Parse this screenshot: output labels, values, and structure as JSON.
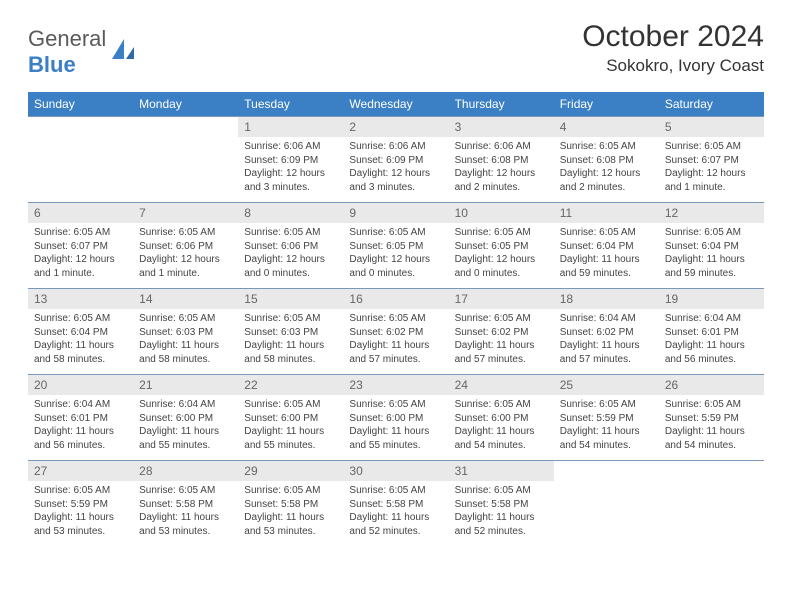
{
  "brand": {
    "word1": "General",
    "word2": "Blue"
  },
  "title": "October 2024",
  "location": "Sokokro, Ivory Coast",
  "colors": {
    "header_bg": "#3b7fc4",
    "header_fg": "#ffffff",
    "daynum_bg": "#e9e9e9",
    "rule": "#7a99b8",
    "logo_blue": "#3b7fc4",
    "logo_gray": "#5a5a5a"
  },
  "weekdays": [
    "Sunday",
    "Monday",
    "Tuesday",
    "Wednesday",
    "Thursday",
    "Friday",
    "Saturday"
  ],
  "weeks": [
    [
      {
        "n": "",
        "sr": "",
        "ss": "",
        "dl": "",
        "empty": true
      },
      {
        "n": "",
        "sr": "",
        "ss": "",
        "dl": "",
        "empty": true
      },
      {
        "n": "1",
        "sr": "Sunrise: 6:06 AM",
        "ss": "Sunset: 6:09 PM",
        "dl": "Daylight: 12 hours and 3 minutes."
      },
      {
        "n": "2",
        "sr": "Sunrise: 6:06 AM",
        "ss": "Sunset: 6:09 PM",
        "dl": "Daylight: 12 hours and 3 minutes."
      },
      {
        "n": "3",
        "sr": "Sunrise: 6:06 AM",
        "ss": "Sunset: 6:08 PM",
        "dl": "Daylight: 12 hours and 2 minutes."
      },
      {
        "n": "4",
        "sr": "Sunrise: 6:05 AM",
        "ss": "Sunset: 6:08 PM",
        "dl": "Daylight: 12 hours and 2 minutes."
      },
      {
        "n": "5",
        "sr": "Sunrise: 6:05 AM",
        "ss": "Sunset: 6:07 PM",
        "dl": "Daylight: 12 hours and 1 minute."
      }
    ],
    [
      {
        "n": "6",
        "sr": "Sunrise: 6:05 AM",
        "ss": "Sunset: 6:07 PM",
        "dl": "Daylight: 12 hours and 1 minute."
      },
      {
        "n": "7",
        "sr": "Sunrise: 6:05 AM",
        "ss": "Sunset: 6:06 PM",
        "dl": "Daylight: 12 hours and 1 minute."
      },
      {
        "n": "8",
        "sr": "Sunrise: 6:05 AM",
        "ss": "Sunset: 6:06 PM",
        "dl": "Daylight: 12 hours and 0 minutes."
      },
      {
        "n": "9",
        "sr": "Sunrise: 6:05 AM",
        "ss": "Sunset: 6:05 PM",
        "dl": "Daylight: 12 hours and 0 minutes."
      },
      {
        "n": "10",
        "sr": "Sunrise: 6:05 AM",
        "ss": "Sunset: 6:05 PM",
        "dl": "Daylight: 12 hours and 0 minutes."
      },
      {
        "n": "11",
        "sr": "Sunrise: 6:05 AM",
        "ss": "Sunset: 6:04 PM",
        "dl": "Daylight: 11 hours and 59 minutes."
      },
      {
        "n": "12",
        "sr": "Sunrise: 6:05 AM",
        "ss": "Sunset: 6:04 PM",
        "dl": "Daylight: 11 hours and 59 minutes."
      }
    ],
    [
      {
        "n": "13",
        "sr": "Sunrise: 6:05 AM",
        "ss": "Sunset: 6:04 PM",
        "dl": "Daylight: 11 hours and 58 minutes."
      },
      {
        "n": "14",
        "sr": "Sunrise: 6:05 AM",
        "ss": "Sunset: 6:03 PM",
        "dl": "Daylight: 11 hours and 58 minutes."
      },
      {
        "n": "15",
        "sr": "Sunrise: 6:05 AM",
        "ss": "Sunset: 6:03 PM",
        "dl": "Daylight: 11 hours and 58 minutes."
      },
      {
        "n": "16",
        "sr": "Sunrise: 6:05 AM",
        "ss": "Sunset: 6:02 PM",
        "dl": "Daylight: 11 hours and 57 minutes."
      },
      {
        "n": "17",
        "sr": "Sunrise: 6:05 AM",
        "ss": "Sunset: 6:02 PM",
        "dl": "Daylight: 11 hours and 57 minutes."
      },
      {
        "n": "18",
        "sr": "Sunrise: 6:04 AM",
        "ss": "Sunset: 6:02 PM",
        "dl": "Daylight: 11 hours and 57 minutes."
      },
      {
        "n": "19",
        "sr": "Sunrise: 6:04 AM",
        "ss": "Sunset: 6:01 PM",
        "dl": "Daylight: 11 hours and 56 minutes."
      }
    ],
    [
      {
        "n": "20",
        "sr": "Sunrise: 6:04 AM",
        "ss": "Sunset: 6:01 PM",
        "dl": "Daylight: 11 hours and 56 minutes."
      },
      {
        "n": "21",
        "sr": "Sunrise: 6:04 AM",
        "ss": "Sunset: 6:00 PM",
        "dl": "Daylight: 11 hours and 55 minutes."
      },
      {
        "n": "22",
        "sr": "Sunrise: 6:05 AM",
        "ss": "Sunset: 6:00 PM",
        "dl": "Daylight: 11 hours and 55 minutes."
      },
      {
        "n": "23",
        "sr": "Sunrise: 6:05 AM",
        "ss": "Sunset: 6:00 PM",
        "dl": "Daylight: 11 hours and 55 minutes."
      },
      {
        "n": "24",
        "sr": "Sunrise: 6:05 AM",
        "ss": "Sunset: 6:00 PM",
        "dl": "Daylight: 11 hours and 54 minutes."
      },
      {
        "n": "25",
        "sr": "Sunrise: 6:05 AM",
        "ss": "Sunset: 5:59 PM",
        "dl": "Daylight: 11 hours and 54 minutes."
      },
      {
        "n": "26",
        "sr": "Sunrise: 6:05 AM",
        "ss": "Sunset: 5:59 PM",
        "dl": "Daylight: 11 hours and 54 minutes."
      }
    ],
    [
      {
        "n": "27",
        "sr": "Sunrise: 6:05 AM",
        "ss": "Sunset: 5:59 PM",
        "dl": "Daylight: 11 hours and 53 minutes."
      },
      {
        "n": "28",
        "sr": "Sunrise: 6:05 AM",
        "ss": "Sunset: 5:58 PM",
        "dl": "Daylight: 11 hours and 53 minutes."
      },
      {
        "n": "29",
        "sr": "Sunrise: 6:05 AM",
        "ss": "Sunset: 5:58 PM",
        "dl": "Daylight: 11 hours and 53 minutes."
      },
      {
        "n": "30",
        "sr": "Sunrise: 6:05 AM",
        "ss": "Sunset: 5:58 PM",
        "dl": "Daylight: 11 hours and 52 minutes."
      },
      {
        "n": "31",
        "sr": "Sunrise: 6:05 AM",
        "ss": "Sunset: 5:58 PM",
        "dl": "Daylight: 11 hours and 52 minutes."
      },
      {
        "n": "",
        "sr": "",
        "ss": "",
        "dl": "",
        "empty": true
      },
      {
        "n": "",
        "sr": "",
        "ss": "",
        "dl": "",
        "empty": true
      }
    ]
  ]
}
